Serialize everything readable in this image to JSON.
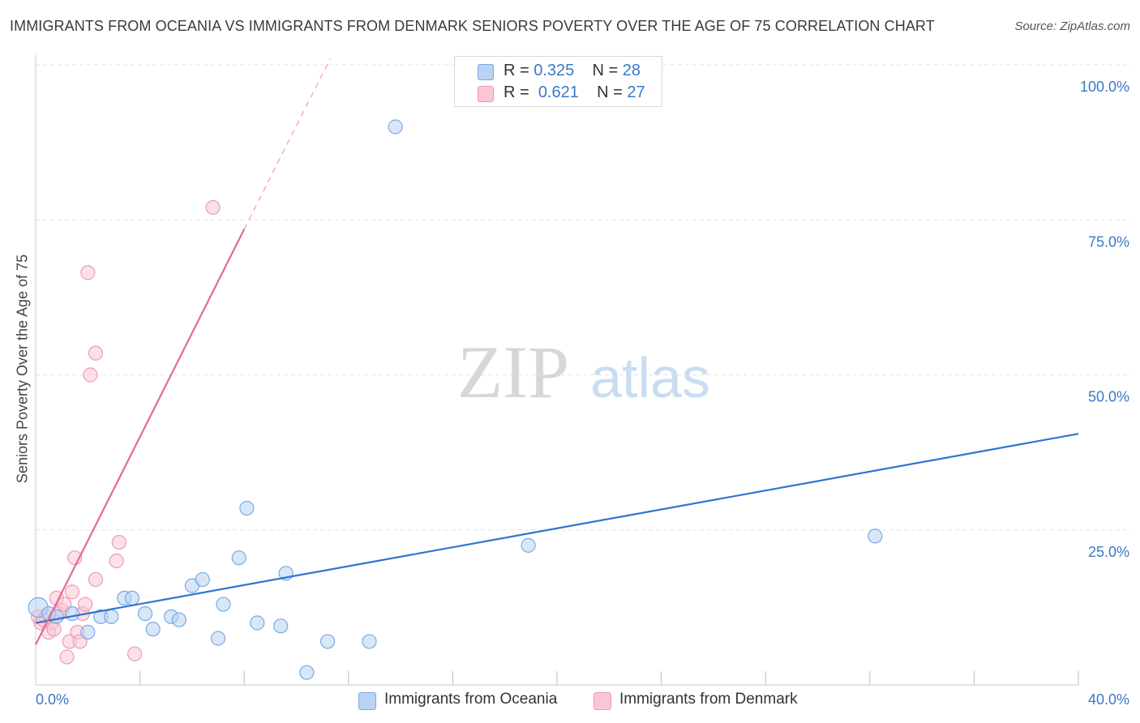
{
  "title": "IMMIGRANTS FROM OCEANIA VS IMMIGRANTS FROM DENMARK SENIORS POVERTY OVER THE AGE OF 75 CORRELATION CHART",
  "source": "Source: ZipAtlas.com",
  "watermark": {
    "zip": "ZIP",
    "atlas": "atlas"
  },
  "legend": {
    "oceania": {
      "r_label": "R =",
      "r_value": "0.325",
      "n_label": "N =",
      "n_value": "28"
    },
    "denmark": {
      "r_label": "R =",
      "r_value": "0.621",
      "n_label": "N =",
      "n_value": "27"
    }
  },
  "colors": {
    "oceania_fill": "#b8d3f3",
    "oceania_stroke": "#7aaae2",
    "oceania_line": "#2f74d0",
    "denmark_fill": "#f8c6d5",
    "denmark_stroke": "#ef9ab5",
    "denmark_line": "#e36b94",
    "tick_label": "#3a78c9",
    "grid": "#e3e3e3"
  },
  "chart_data": {
    "type": "scatter",
    "title": "IMMIGRANTS FROM OCEANIA VS IMMIGRANTS FROM DENMARK SENIORS POVERTY OVER THE AGE OF 75 CORRELATION CHART",
    "xlabel": "",
    "ylabel": "Seniors Poverty Over the Age of 75",
    "xlim": [
      0,
      40
    ],
    "ylim": [
      0,
      100
    ],
    "x_tick_labels": {
      "min": "0.0%",
      "max": "40.0%"
    },
    "y_ticks": [
      25,
      50,
      75,
      100
    ],
    "y_tick_labels": [
      "25.0%",
      "50.0%",
      "75.0%",
      "100.0%"
    ],
    "grid": true,
    "series": [
      {
        "name": "Immigrants from Oceania",
        "points": [
          [
            0.1,
            12.5
          ],
          [
            0.5,
            11.5
          ],
          [
            0.8,
            11.0
          ],
          [
            1.4,
            11.5
          ],
          [
            2.0,
            8.5
          ],
          [
            2.5,
            11.0
          ],
          [
            2.9,
            11.0
          ],
          [
            3.4,
            14.0
          ],
          [
            3.7,
            14.0
          ],
          [
            4.2,
            11.5
          ],
          [
            4.5,
            9.0
          ],
          [
            5.2,
            11.0
          ],
          [
            5.5,
            10.5
          ],
          [
            6.0,
            16.0
          ],
          [
            6.4,
            17.0
          ],
          [
            7.0,
            7.5
          ],
          [
            7.2,
            13.0
          ],
          [
            7.8,
            20.5
          ],
          [
            8.1,
            28.5
          ],
          [
            8.5,
            10.0
          ],
          [
            9.4,
            9.5
          ],
          [
            9.6,
            18.0
          ],
          [
            10.4,
            2.0
          ],
          [
            11.2,
            7.0
          ],
          [
            12.8,
            7.0
          ],
          [
            13.8,
            90.0
          ],
          [
            18.9,
            22.5
          ],
          [
            32.2,
            24.0
          ]
        ],
        "trend": {
          "x": [
            0,
            40
          ],
          "y": [
            10.0,
            40.5
          ]
        }
      },
      {
        "name": "Immigrants from Denmark",
        "points": [
          [
            0.1,
            11.0
          ],
          [
            0.2,
            10.0
          ],
          [
            0.4,
            11.0
          ],
          [
            0.5,
            8.5
          ],
          [
            0.6,
            10.0
          ],
          [
            0.7,
            9.0
          ],
          [
            0.8,
            14.0
          ],
          [
            0.9,
            11.5
          ],
          [
            1.0,
            12.0
          ],
          [
            1.1,
            13.0
          ],
          [
            1.2,
            4.5
          ],
          [
            1.3,
            7.0
          ],
          [
            1.4,
            15.0
          ],
          [
            1.5,
            20.5
          ],
          [
            1.6,
            8.5
          ],
          [
            1.7,
            7.0
          ],
          [
            1.8,
            11.5
          ],
          [
            1.9,
            13.0
          ],
          [
            2.0,
            66.5
          ],
          [
            2.1,
            50.0
          ],
          [
            2.3,
            53.5
          ],
          [
            2.3,
            17.0
          ],
          [
            3.1,
            20.0
          ],
          [
            3.2,
            23.0
          ],
          [
            3.8,
            5.0
          ],
          [
            6.8,
            77.0
          ],
          [
            0.3,
            10.5
          ]
        ],
        "trend": {
          "x": [
            0,
            8.0
          ],
          "y": [
            6.5,
            73.5
          ]
        },
        "trend_extension": {
          "x": [
            8.0,
            11.3
          ],
          "y": [
            73.5,
            101.0
          ]
        }
      }
    ]
  }
}
